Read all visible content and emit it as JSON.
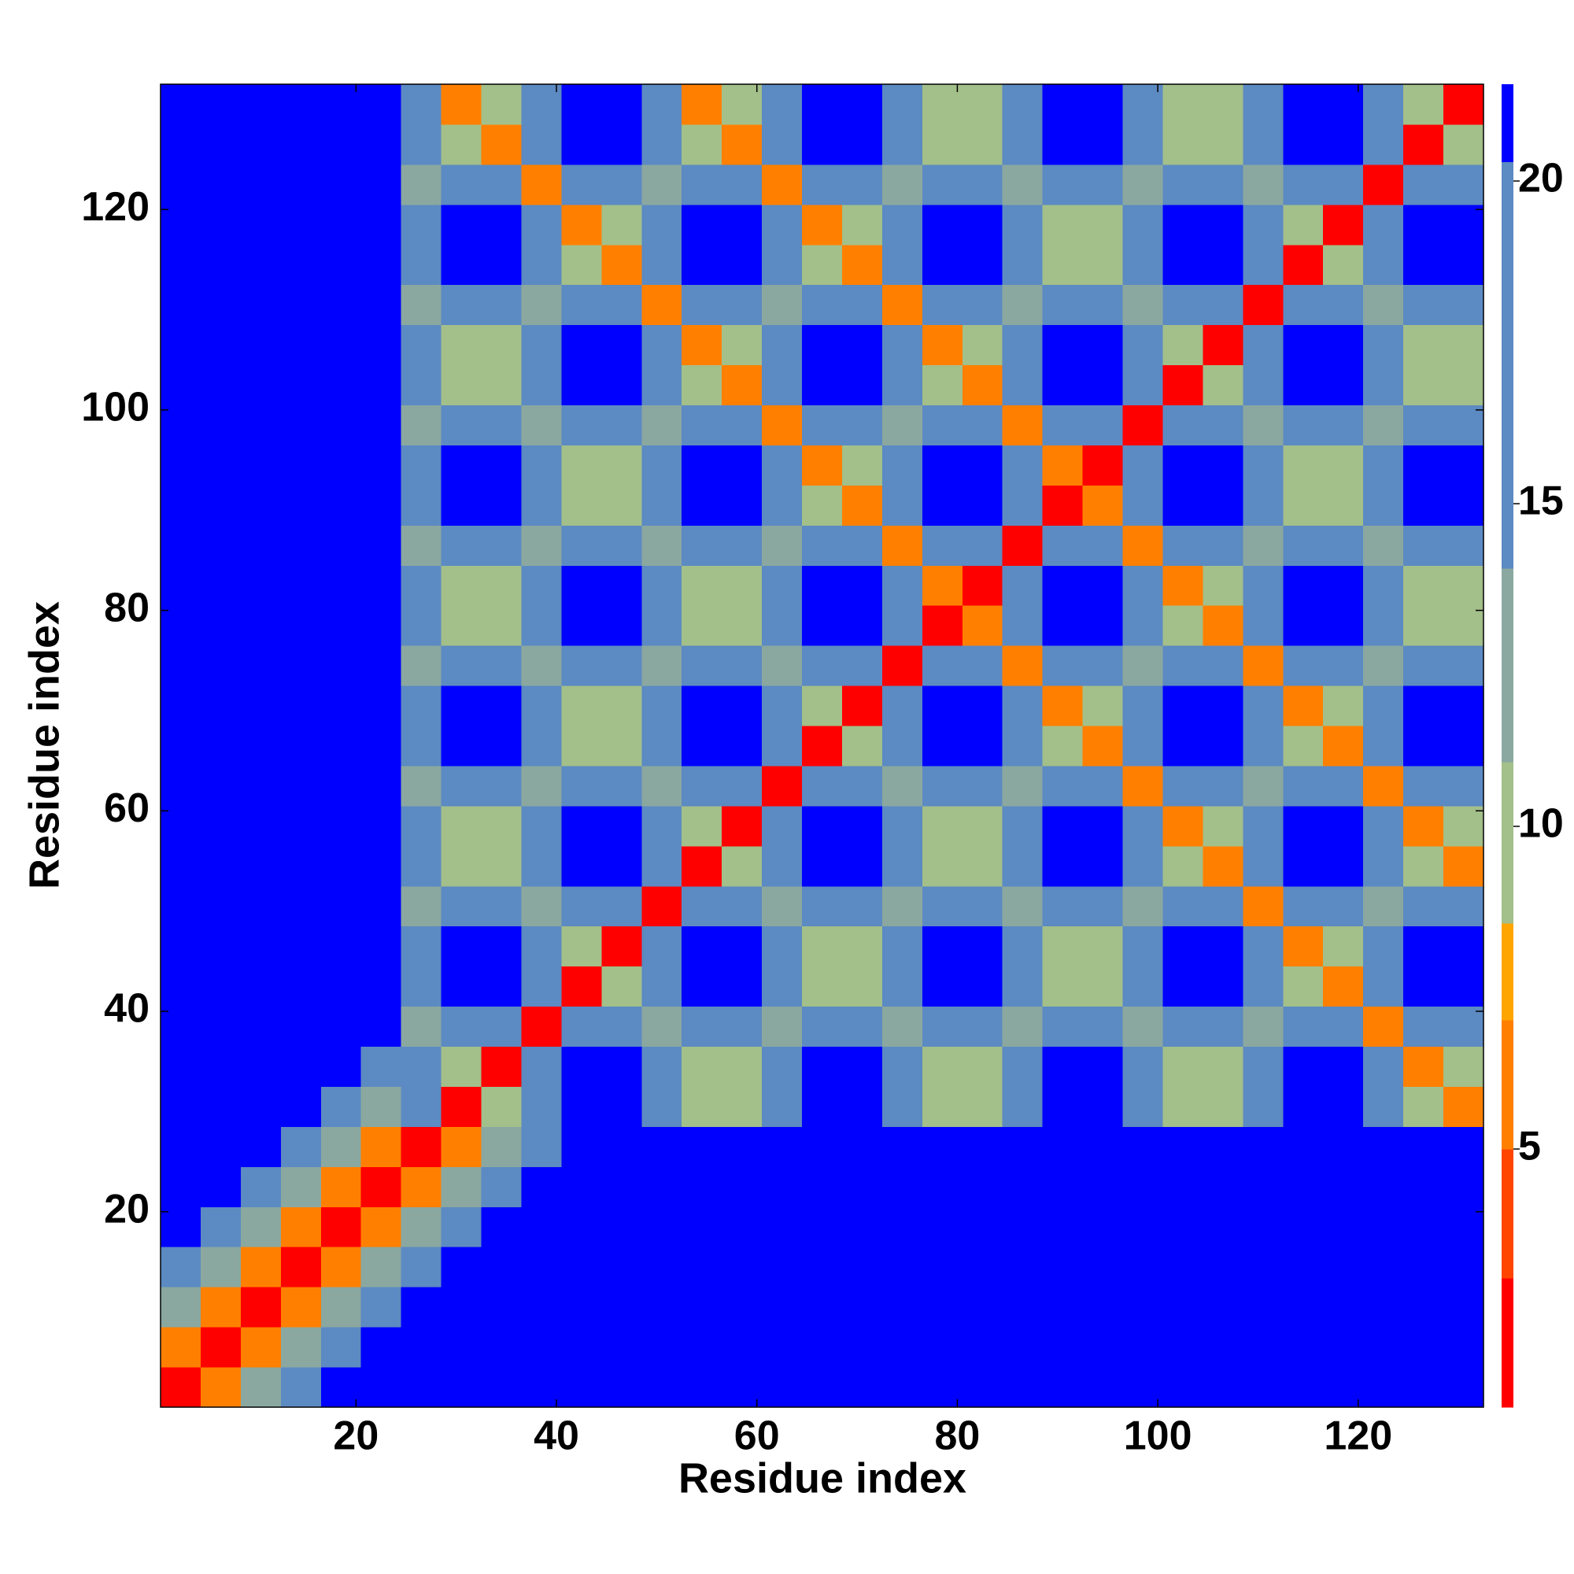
{
  "chart_data": {
    "type": "heatmap",
    "xlabel": "Residue index",
    "ylabel": "Residue index",
    "x": [
      1,
      5,
      9,
      13,
      17,
      21,
      25,
      29,
      33,
      37,
      41,
      45,
      49,
      53,
      57,
      61,
      65,
      69,
      73,
      77,
      81,
      85,
      89,
      93,
      97,
      101,
      105,
      109,
      113,
      117,
      121,
      125,
      129
    ],
    "y": [
      1,
      5,
      9,
      13,
      17,
      21,
      25,
      29,
      33,
      37,
      41,
      45,
      49,
      53,
      57,
      61,
      65,
      69,
      73,
      77,
      81,
      85,
      89,
      93,
      97,
      101,
      105,
      109,
      113,
      117,
      121,
      125,
      129
    ],
    "xlim": [
      0.5,
      132.5
    ],
    "ylim": [
      0.5,
      132.5
    ],
    "xticks": [
      20,
      40,
      60,
      80,
      100,
      120
    ],
    "yticks": [
      20,
      40,
      60,
      80,
      100,
      120
    ],
    "colorbar": {
      "lim": [
        1,
        21.5
      ],
      "ticks": [
        5,
        10,
        15,
        20
      ],
      "levels": [
        1,
        3,
        5,
        7,
        8.5,
        11,
        14,
        20.3,
        21.5
      ],
      "colors": [
        "#ff0000",
        "#ff4500",
        "#ff8000",
        "#ffa500",
        "#a3bf8a",
        "#8aa8a0",
        "#5c8ac2",
        "#0000ff"
      ]
    },
    "z": [
      [
        2,
        6,
        11,
        16,
        21,
        21,
        21,
        21,
        21,
        21,
        21,
        21,
        21,
        21,
        21,
        21,
        21,
        21,
        21,
        21,
        21,
        21,
        21,
        21,
        21,
        21,
        21,
        21,
        21,
        21,
        21,
        21,
        21
      ],
      [
        6,
        2,
        6,
        11,
        16,
        21,
        21,
        21,
        21,
        21,
        21,
        21,
        21,
        21,
        21,
        21,
        21,
        21,
        21,
        21,
        21,
        21,
        21,
        21,
        21,
        21,
        21,
        21,
        21,
        21,
        21,
        21,
        21
      ],
      [
        11,
        6,
        2,
        6,
        11,
        16,
        21,
        21,
        21,
        21,
        21,
        21,
        21,
        21,
        21,
        21,
        21,
        21,
        21,
        21,
        21,
        21,
        21,
        21,
        21,
        21,
        21,
        21,
        21,
        21,
        21,
        21,
        21
      ],
      [
        16,
        11,
        6,
        2,
        6,
        11,
        16,
        21,
        21,
        21,
        21,
        21,
        21,
        21,
        21,
        21,
        21,
        21,
        21,
        21,
        21,
        21,
        21,
        21,
        21,
        21,
        21,
        21,
        21,
        21,
        21,
        21,
        21
      ],
      [
        21,
        16,
        11,
        6,
        2,
        6,
        11,
        16,
        21,
        21,
        21,
        21,
        21,
        21,
        21,
        21,
        21,
        21,
        21,
        21,
        21,
        21,
        21,
        21,
        21,
        21,
        21,
        21,
        21,
        21,
        21,
        21,
        21
      ],
      [
        21,
        21,
        16,
        11,
        6,
        2,
        6,
        11,
        16,
        21,
        21,
        21,
        21,
        21,
        21,
        21,
        21,
        21,
        21,
        21,
        21,
        21,
        21,
        21,
        21,
        21,
        21,
        21,
        21,
        21,
        21,
        21,
        21
      ],
      [
        21,
        21,
        21,
        16,
        11,
        6,
        2,
        6,
        11,
        16,
        21,
        21,
        21,
        21,
        21,
        21,
        21,
        21,
        21,
        21,
        21,
        21,
        21,
        21,
        21,
        21,
        21,
        21,
        21,
        21,
        21,
        21,
        21
      ],
      [
        21,
        21,
        21,
        21,
        16,
        11,
        17,
        2,
        10,
        17,
        21,
        21,
        17,
        10,
        10,
        17,
        21,
        21,
        17,
        10,
        10,
        17,
        21,
        21,
        17,
        10,
        10,
        17,
        21,
        21,
        17,
        10,
        6
      ],
      [
        21,
        21,
        21,
        21,
        21,
        16,
        17,
        10,
        2,
        17,
        21,
        21,
        17,
        10,
        10,
        17,
        21,
        21,
        17,
        10,
        10,
        17,
        21,
        21,
        17,
        10,
        10,
        17,
        21,
        21,
        17,
        6,
        10
      ],
      [
        21,
        21,
        21,
        21,
        21,
        21,
        12,
        17,
        17,
        2,
        17,
        17,
        12,
        17,
        17,
        12,
        17,
        17,
        12,
        17,
        17,
        12,
        17,
        17,
        12,
        17,
        17,
        12,
        17,
        17,
        6,
        17,
        17
      ],
      [
        21,
        21,
        21,
        21,
        21,
        21,
        17,
        21,
        21,
        17,
        2,
        10,
        17,
        21,
        21,
        17,
        10,
        10,
        17,
        21,
        21,
        17,
        10,
        10,
        17,
        21,
        21,
        17,
        10,
        6,
        17,
        21,
        21
      ],
      [
        21,
        21,
        21,
        21,
        21,
        21,
        17,
        21,
        21,
        17,
        10,
        2,
        17,
        21,
        21,
        17,
        10,
        10,
        17,
        21,
        21,
        17,
        10,
        10,
        17,
        21,
        21,
        17,
        6,
        10,
        17,
        21,
        21
      ],
      [
        21,
        21,
        21,
        21,
        21,
        21,
        12,
        17,
        17,
        12,
        17,
        17,
        2,
        17,
        17,
        12,
        17,
        17,
        12,
        17,
        17,
        12,
        17,
        17,
        12,
        17,
        17,
        6,
        17,
        17,
        12,
        17,
        17
      ],
      [
        21,
        21,
        21,
        21,
        21,
        21,
        17,
        10,
        10,
        17,
        21,
        21,
        17,
        2,
        10,
        17,
        21,
        21,
        17,
        10,
        10,
        17,
        21,
        21,
        17,
        10,
        6,
        17,
        21,
        21,
        17,
        10,
        6
      ],
      [
        21,
        21,
        21,
        21,
        21,
        21,
        17,
        10,
        10,
        17,
        21,
        21,
        17,
        10,
        2,
        17,
        21,
        21,
        17,
        10,
        10,
        17,
        21,
        21,
        17,
        6,
        10,
        17,
        21,
        21,
        17,
        6,
        10
      ],
      [
        21,
        21,
        21,
        21,
        21,
        21,
        12,
        17,
        17,
        12,
        17,
        17,
        12,
        17,
        17,
        2,
        17,
        17,
        12,
        17,
        17,
        12,
        17,
        17,
        6,
        17,
        17,
        12,
        17,
        17,
        6,
        17,
        17
      ],
      [
        21,
        21,
        21,
        21,
        21,
        21,
        17,
        21,
        21,
        17,
        10,
        10,
        17,
        21,
        21,
        17,
        2,
        10,
        17,
        21,
        21,
        17,
        10,
        6,
        17,
        21,
        21,
        17,
        10,
        6,
        17,
        21,
        21
      ],
      [
        21,
        21,
        21,
        21,
        21,
        21,
        17,
        21,
        21,
        17,
        10,
        10,
        17,
        21,
        21,
        17,
        10,
        2,
        17,
        21,
        21,
        17,
        6,
        10,
        17,
        21,
        21,
        17,
        6,
        10,
        17,
        21,
        21
      ],
      [
        21,
        21,
        21,
        21,
        21,
        21,
        12,
        17,
        17,
        12,
        17,
        17,
        12,
        17,
        17,
        12,
        17,
        17,
        2,
        17,
        17,
        6,
        17,
        17,
        12,
        17,
        17,
        6,
        17,
        17,
        12,
        17,
        17
      ],
      [
        21,
        21,
        21,
        21,
        21,
        21,
        17,
        10,
        10,
        17,
        21,
        21,
        17,
        10,
        10,
        17,
        21,
        21,
        17,
        2,
        6,
        17,
        21,
        21,
        17,
        10,
        6,
        17,
        21,
        21,
        17,
        10,
        10
      ],
      [
        21,
        21,
        21,
        21,
        21,
        21,
        17,
        10,
        10,
        17,
        21,
        21,
        17,
        10,
        10,
        17,
        21,
        21,
        17,
        6,
        2,
        17,
        21,
        21,
        17,
        6,
        10,
        17,
        21,
        21,
        17,
        10,
        10
      ],
      [
        21,
        21,
        21,
        21,
        21,
        21,
        12,
        17,
        17,
        12,
        17,
        17,
        12,
        17,
        17,
        12,
        17,
        17,
        6,
        17,
        17,
        2,
        17,
        17,
        6,
        17,
        17,
        12,
        17,
        17,
        12,
        17,
        17
      ],
      [
        21,
        21,
        21,
        21,
        21,
        21,
        17,
        21,
        21,
        17,
        10,
        10,
        17,
        21,
        21,
        17,
        10,
        6,
        17,
        21,
        21,
        17,
        2,
        6,
        17,
        21,
        21,
        17,
        10,
        10,
        17,
        21,
        21
      ],
      [
        21,
        21,
        21,
        21,
        21,
        21,
        17,
        21,
        21,
        17,
        10,
        10,
        17,
        21,
        21,
        17,
        6,
        10,
        17,
        21,
        21,
        17,
        6,
        2,
        17,
        21,
        21,
        17,
        10,
        10,
        17,
        21,
        21
      ],
      [
        21,
        21,
        21,
        21,
        21,
        21,
        12,
        17,
        17,
        12,
        17,
        17,
        12,
        17,
        17,
        6,
        17,
        17,
        12,
        17,
        17,
        6,
        17,
        17,
        2,
        17,
        17,
        12,
        17,
        17,
        12,
        17,
        17
      ],
      [
        21,
        21,
        21,
        21,
        21,
        21,
        17,
        10,
        10,
        17,
        21,
        21,
        17,
        10,
        6,
        17,
        21,
        21,
        17,
        10,
        6,
        17,
        21,
        21,
        17,
        2,
        10,
        17,
        21,
        21,
        17,
        10,
        10
      ],
      [
        21,
        21,
        21,
        21,
        21,
        21,
        17,
        10,
        10,
        17,
        21,
        21,
        17,
        6,
        10,
        17,
        21,
        21,
        17,
        6,
        10,
        17,
        21,
        21,
        17,
        10,
        2,
        17,
        21,
        21,
        17,
        10,
        10
      ],
      [
        21,
        21,
        21,
        21,
        21,
        21,
        12,
        17,
        17,
        12,
        17,
        17,
        6,
        17,
        17,
        12,
        17,
        17,
        6,
        17,
        17,
        12,
        17,
        17,
        12,
        17,
        17,
        2,
        17,
        17,
        12,
        17,
        17
      ],
      [
        21,
        21,
        21,
        21,
        21,
        21,
        17,
        21,
        21,
        17,
        10,
        6,
        17,
        21,
        21,
        17,
        10,
        6,
        17,
        21,
        21,
        17,
        10,
        10,
        17,
        21,
        21,
        17,
        2,
        10,
        17,
        21,
        21
      ],
      [
        21,
        21,
        21,
        21,
        21,
        21,
        17,
        21,
        21,
        17,
        6,
        10,
        17,
        21,
        21,
        17,
        6,
        10,
        17,
        21,
        21,
        17,
        10,
        10,
        17,
        21,
        21,
        17,
        10,
        2,
        17,
        21,
        21
      ],
      [
        21,
        21,
        21,
        21,
        21,
        21,
        12,
        17,
        17,
        6,
        17,
        17,
        12,
        17,
        17,
        6,
        17,
        17,
        12,
        17,
        17,
        12,
        17,
        17,
        12,
        17,
        17,
        12,
        17,
        17,
        2,
        17,
        17
      ],
      [
        21,
        21,
        21,
        21,
        21,
        21,
        17,
        10,
        6,
        17,
        21,
        21,
        17,
        10,
        6,
        17,
        21,
        21,
        17,
        10,
        10,
        17,
        21,
        21,
        17,
        10,
        10,
        17,
        21,
        21,
        17,
        2,
        10
      ],
      [
        21,
        21,
        21,
        21,
        21,
        21,
        17,
        6,
        10,
        17,
        21,
        21,
        17,
        6,
        10,
        17,
        21,
        21,
        17,
        10,
        10,
        17,
        21,
        21,
        17,
        10,
        10,
        17,
        21,
        21,
        17,
        10,
        2
      ]
    ]
  }
}
